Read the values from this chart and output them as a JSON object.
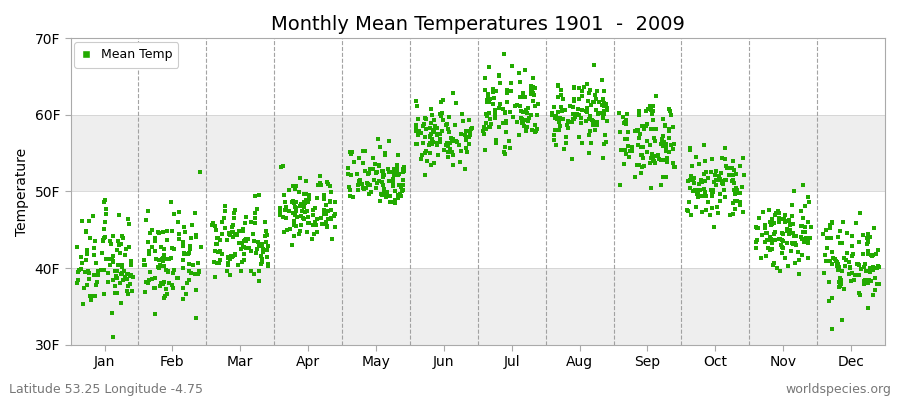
{
  "title": "Monthly Mean Temperatures 1901  -  2009",
  "ylabel": "Temperature",
  "dot_color": "#22aa00",
  "bg_color": "#ffffff",
  "plot_bg_color": "#ffffff",
  "band_color": "#eeeeee",
  "subtitle": "Latitude 53.25 Longitude -4.75",
  "watermark": "worldspecies.org",
  "ylim": [
    30,
    70
  ],
  "yticks": [
    30,
    40,
    50,
    60,
    70
  ],
  "ytick_labels": [
    "30F",
    "40F",
    "50F",
    "60F",
    "70F"
  ],
  "months": [
    "Jan",
    "Feb",
    "Mar",
    "Apr",
    "May",
    "Jun",
    "Jul",
    "Aug",
    "Sep",
    "Oct",
    "Nov",
    "Dec"
  ],
  "month_means_F": [
    40.5,
    40.8,
    43.0,
    47.5,
    52.0,
    57.5,
    60.5,
    60.0,
    56.5,
    50.5,
    44.5,
    41.0
  ],
  "month_stds_F": [
    3.2,
    3.0,
    2.5,
    2.2,
    2.0,
    2.2,
    2.2,
    2.2,
    2.5,
    2.5,
    2.5,
    2.8
  ],
  "n_years": 109,
  "marker_size": 12,
  "title_fontsize": 14,
  "label_fontsize": 10,
  "tick_fontsize": 10,
  "subtitle_fontsize": 9
}
